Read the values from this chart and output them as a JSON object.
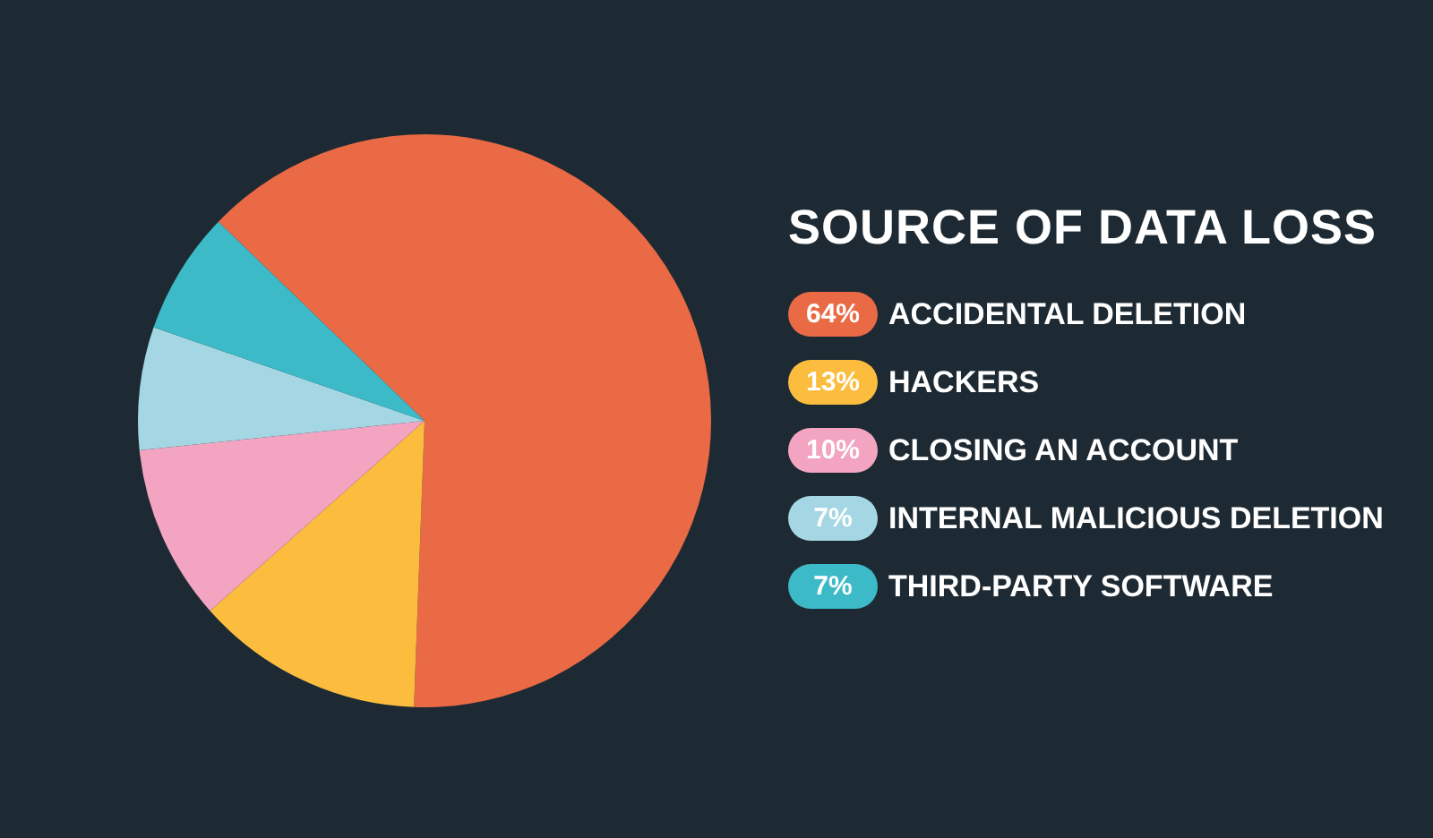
{
  "chart_data": {
    "type": "pie",
    "title": "SOURCE OF DATA LOSS",
    "categories": [
      "ACCIDENTAL DELETION",
      "HACKERS",
      "CLOSING AN ACCOUNT",
      "INTERNAL MALICIOUS DELETION",
      "THIRD-PARTY SOFTWARE"
    ],
    "values": [
      64,
      13,
      10,
      7,
      7
    ],
    "value_labels": [
      "64%",
      "13%",
      "10%",
      "7%",
      "7%"
    ],
    "colors": [
      "#e96a45",
      "#fcbd3f",
      "#f2a4c0",
      "#a4d7e3",
      "#3cbac8"
    ],
    "legend": "right"
  }
}
